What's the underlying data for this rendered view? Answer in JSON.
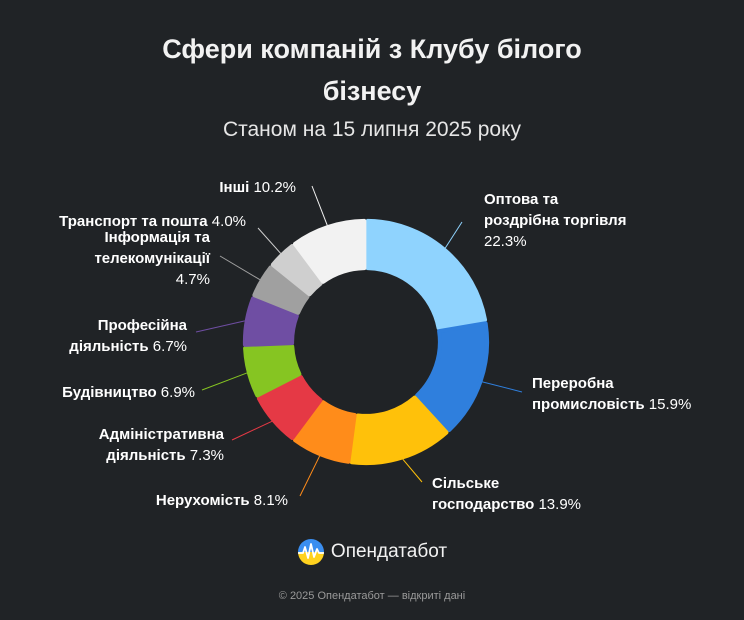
{
  "page": {
    "title_line1": "Сфери компаній з Клубу білого",
    "title_line2": "бізнесу",
    "subtitle": "Станом на 15 липня 2025 року",
    "brand": "Опендатабот",
    "footer": "© 2025 Опендатабот — відкриті дані"
  },
  "chart_data": {
    "type": "pie",
    "title": "Сфери компаній з Клубу білого бізнесу",
    "subtitle": "Станом на 15 липня 2025 року",
    "donut": true,
    "slices": [
      {
        "label": [
          "Оптова та",
          "роздрібна торгівля"
        ],
        "value": 22.3,
        "color": "#8fd3fe"
      },
      {
        "label": [
          "Переробна",
          "промисловість"
        ],
        "value": 15.9,
        "color": "#2f7fdd"
      },
      {
        "label": [
          "Сільське",
          "господарство"
        ],
        "value": 13.9,
        "color": "#ffc10a"
      },
      {
        "label": [
          "Нерухомість"
        ],
        "value": 8.1,
        "color": "#ff8c1a"
      },
      {
        "label": [
          "Адміністративна",
          "діяльність"
        ],
        "value": 7.3,
        "color": "#e53945"
      },
      {
        "label": [
          "Будівництво"
        ],
        "value": 6.9,
        "color": "#86c522"
      },
      {
        "label": [
          "Професійна",
          "діяльність"
        ],
        "value": 6.7,
        "color": "#6f4ea3"
      },
      {
        "label": [
          "Інформація та",
          "телекомунікації"
        ],
        "value": 4.7,
        "color": "#a0a0a0"
      },
      {
        "label": [
          "Транспорт та пошта"
        ],
        "value": 4.0,
        "color": "#cfcfcf"
      },
      {
        "label": [
          "Інші"
        ],
        "value": 10.2,
        "color": "#f2f2f2"
      }
    ]
  }
}
